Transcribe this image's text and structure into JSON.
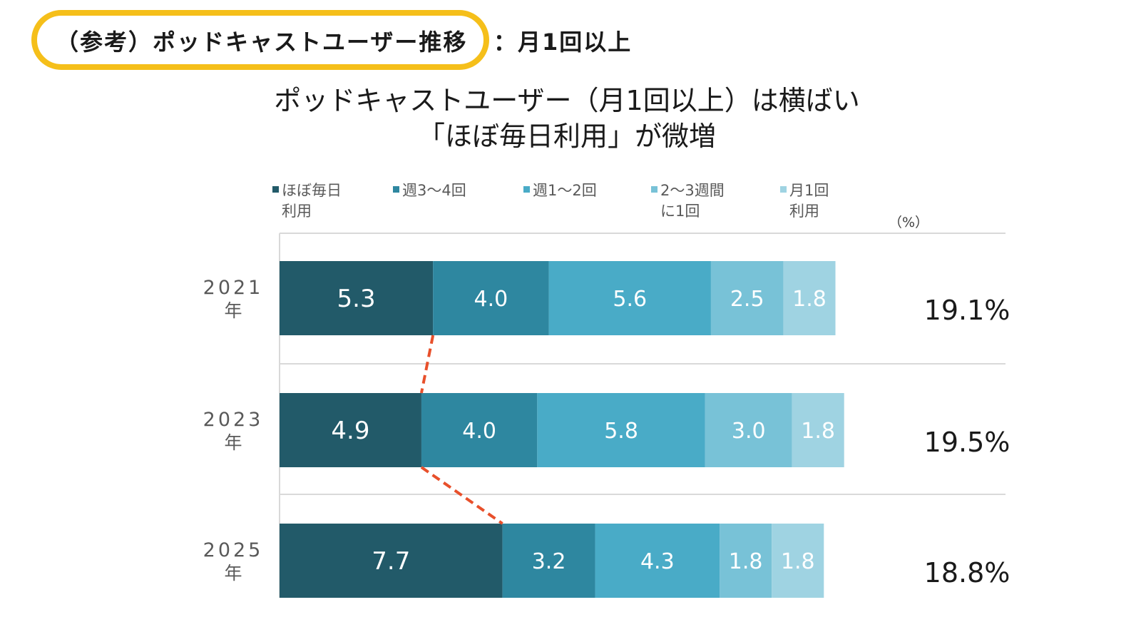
{
  "header": {
    "label": "（参考）ポッドキャストユーザー推移",
    "suffix": "：月1回以上"
  },
  "chart_data": {
    "type": "bar",
    "orientation": "horizontal",
    "stacked": true,
    "title_lines": [
      "ポッドキャストユーザー（月1回以上）は横ばい",
      "「ほぼ毎日利用」が微増"
    ],
    "unit_label": "（%）",
    "categories": [
      {
        "year": "2021",
        "suffix": "年"
      },
      {
        "year": "2023",
        "suffix": "年"
      },
      {
        "year": "2025",
        "suffix": "年"
      }
    ],
    "series": [
      {
        "name_lines": [
          "ほぼ毎日",
          "利用"
        ],
        "color": "#225a69",
        "values": [
          5.3,
          4.9,
          7.7
        ]
      },
      {
        "name_lines": [
          "週3～4回"
        ],
        "color": "#2e87a0",
        "values": [
          4.0,
          4.0,
          3.2
        ]
      },
      {
        "name_lines": [
          "週1～2回"
        ],
        "color": "#49abc7",
        "values": [
          5.6,
          5.8,
          4.3
        ]
      },
      {
        "name_lines": [
          "2～3週間",
          "に1回"
        ],
        "color": "#78c2d7",
        "values": [
          2.5,
          3.0,
          1.8
        ]
      },
      {
        "name_lines": [
          "月1回",
          "利用"
        ],
        "color": "#9fd3e2",
        "values": [
          1.8,
          1.8,
          1.8
        ]
      }
    ],
    "totals": [
      "19.1%",
      "19.5%",
      "18.8%"
    ],
    "xlim": [
      0,
      25
    ],
    "connector_color": "#e8502b",
    "grid": true,
    "legend_position": "top"
  }
}
